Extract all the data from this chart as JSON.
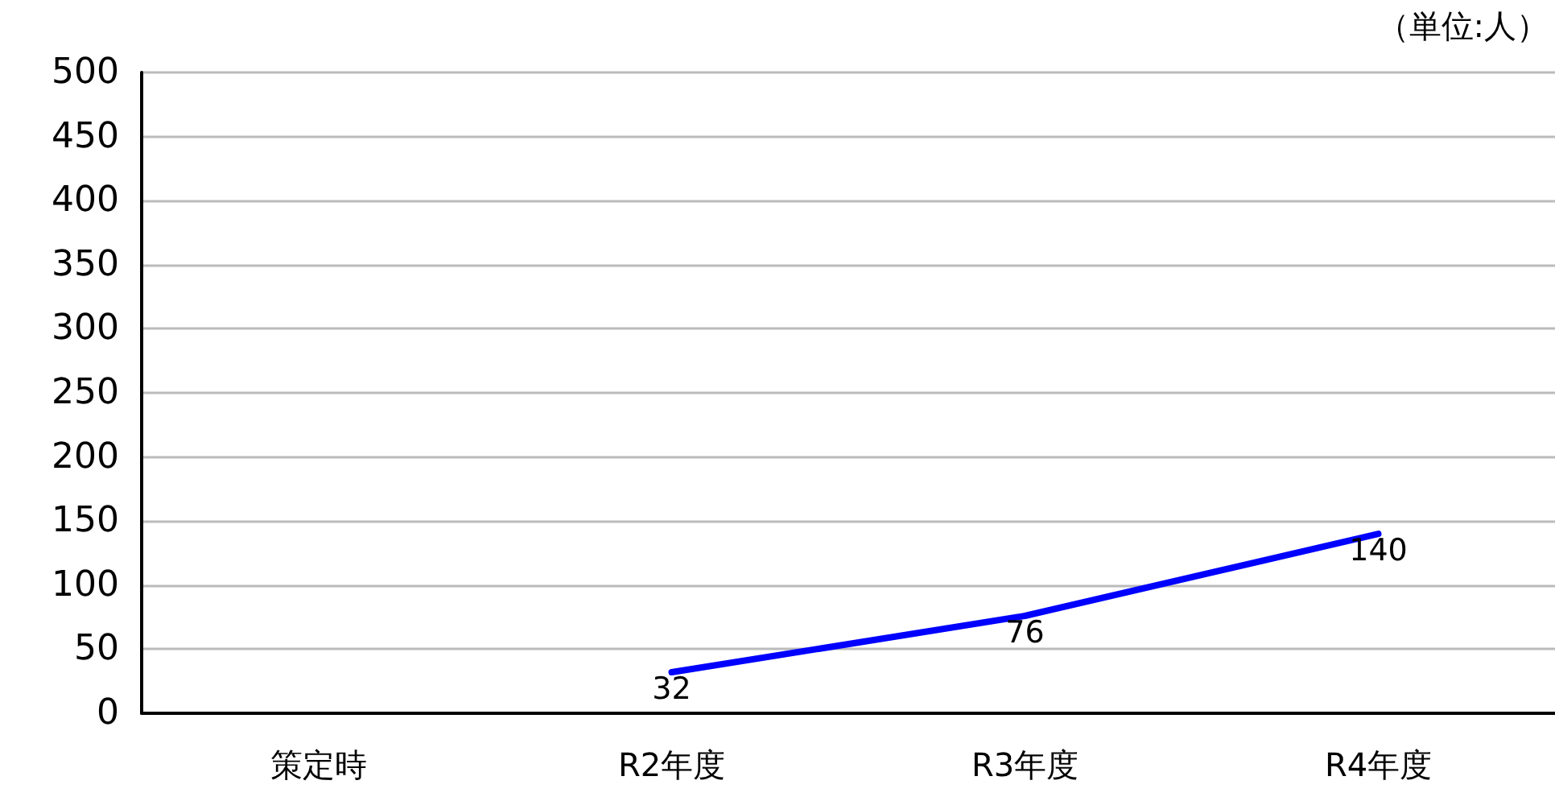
{
  "chart_data": {
    "type": "line",
    "categories": [
      "策定時",
      "R2年度",
      "R3年度",
      "R4年度"
    ],
    "series": [
      {
        "color": "#0000ff",
        "values": [
          null,
          32,
          76,
          140
        ]
      }
    ],
    "ylim": [
      0,
      500
    ],
    "yticks": [
      0,
      50,
      100,
      150,
      200,
      250,
      300,
      350,
      400,
      450,
      500
    ],
    "grid": "y",
    "marker": "none",
    "line_style": "solid",
    "data_labels": true,
    "annotations": [
      "（単位:人）"
    ]
  }
}
